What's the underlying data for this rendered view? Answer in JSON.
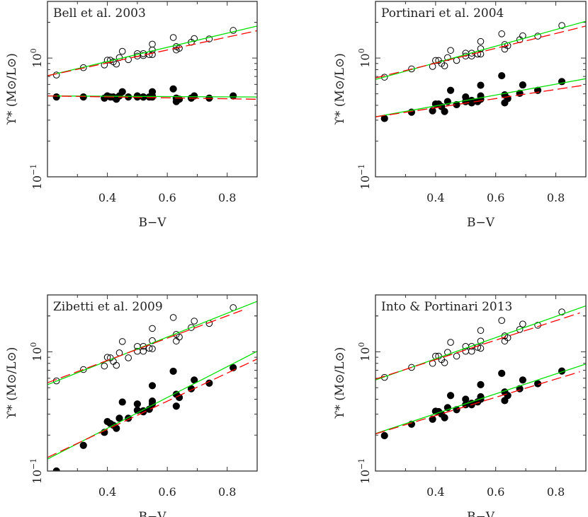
{
  "chart_data": [
    {
      "type": "scatter",
      "title": "Bell et al. 2003",
      "xlabel": "B−V",
      "ylabel": "ϒ* (M⊙/L⊙)",
      "xlim": [
        0.2,
        0.9
      ],
      "ylim": [
        0.1,
        3.0
      ],
      "yscale": "log",
      "xticks": [
        "0.4",
        "0.6",
        "0.8"
      ],
      "yticks": [
        {
          "base": "10",
          "exp": "−1",
          "value": 0.1
        },
        {
          "base": "10",
          "exp": "0",
          "value": 1
        }
      ],
      "x": [
        0.23,
        0.32,
        0.39,
        0.4,
        0.41,
        0.42,
        0.43,
        0.44,
        0.45,
        0.47,
        0.5,
        0.5,
        0.52,
        0.52,
        0.54,
        0.55,
        0.55,
        0.55,
        0.62,
        0.63,
        0.63,
        0.64,
        0.68,
        0.69,
        0.74,
        0.82
      ],
      "series": [
        {
          "marker": "open-circle",
          "y": [
            0.72,
            0.83,
            0.875,
            0.96,
            0.96,
            0.93,
            0.89,
            1.01,
            1.14,
            0.97,
            1.04,
            1.09,
            1.05,
            1.09,
            1.07,
            1.07,
            1.17,
            1.31,
            1.49,
            1.17,
            1.25,
            1.21,
            1.36,
            1.46,
            1.45,
            1.71
          ]
        },
        {
          "marker": "filled-circle",
          "y": [
            0.47,
            0.47,
            0.46,
            0.48,
            0.47,
            0.47,
            0.45,
            0.48,
            0.52,
            0.47,
            0.48,
            0.47,
            0.47,
            0.47,
            0.47,
            0.47,
            0.48,
            0.52,
            0.55,
            0.46,
            0.43,
            0.45,
            0.46,
            0.48,
            0.46,
            0.48
          ]
        }
      ],
      "fits": [
        {
          "style": "solid",
          "color": "#00e000",
          "x": [
            0.2,
            0.9
          ],
          "y": [
            0.71,
            1.86
          ]
        },
        {
          "style": "dashed",
          "color": "#ff0000",
          "x": [
            0.2,
            0.9
          ],
          "y": [
            0.71,
            1.7
          ]
        },
        {
          "style": "solid",
          "color": "#00e000",
          "x": [
            0.2,
            0.9
          ],
          "y": [
            0.48,
            0.47
          ]
        },
        {
          "style": "dashed",
          "color": "#ff0000",
          "x": [
            0.2,
            0.9
          ],
          "y": [
            0.48,
            0.45
          ]
        }
      ]
    },
    {
      "type": "scatter",
      "title": "Portinari et al. 2004",
      "xlabel": "B−V",
      "ylabel": "ϒ* (M⊙/L⊙)",
      "xlim": [
        0.2,
        0.9
      ],
      "ylim": [
        0.1,
        3.0
      ],
      "yscale": "log",
      "xticks": [
        "0.4",
        "0.6",
        "0.8"
      ],
      "yticks": [
        {
          "base": "10",
          "exp": "−1",
          "value": 0.1
        },
        {
          "base": "10",
          "exp": "0",
          "value": 1
        }
      ],
      "x": [
        0.23,
        0.32,
        0.39,
        0.4,
        0.41,
        0.42,
        0.43,
        0.44,
        0.45,
        0.47,
        0.5,
        0.5,
        0.52,
        0.52,
        0.54,
        0.55,
        0.55,
        0.55,
        0.62,
        0.63,
        0.63,
        0.64,
        0.68,
        0.69,
        0.74,
        0.82
      ],
      "series": [
        {
          "marker": "open-circle",
          "y": [
            0.69,
            0.81,
            0.85,
            0.955,
            0.955,
            0.9,
            0.86,
            1.01,
            1.16,
            0.955,
            1.04,
            1.1,
            1.04,
            1.1,
            1.08,
            1.08,
            1.2,
            1.38,
            1.6,
            1.19,
            1.3,
            1.27,
            1.43,
            1.54,
            1.53,
            1.88
          ]
        },
        {
          "marker": "filled-circle",
          "y": [
            0.31,
            0.35,
            0.36,
            0.41,
            0.41,
            0.39,
            0.355,
            0.43,
            0.535,
            0.405,
            0.47,
            0.43,
            0.42,
            0.44,
            0.43,
            0.48,
            0.45,
            0.59,
            0.71,
            0.42,
            0.49,
            0.456,
            0.505,
            0.594,
            0.535,
            0.634
          ]
        }
      ],
      "fits": [
        {
          "style": "solid",
          "color": "#00e000",
          "x": [
            0.2,
            0.9
          ],
          "y": [
            0.66,
            2.04
          ]
        },
        {
          "style": "dashed",
          "color": "#ff0000",
          "x": [
            0.2,
            0.9
          ],
          "y": [
            0.68,
            1.86
          ]
        },
        {
          "style": "solid",
          "color": "#00e000",
          "x": [
            0.2,
            0.9
          ],
          "y": [
            0.32,
            0.67
          ]
        },
        {
          "style": "dashed",
          "color": "#ff0000",
          "x": [
            0.2,
            0.9
          ],
          "y": [
            0.32,
            0.594
          ]
        }
      ]
    },
    {
      "type": "scatter",
      "title": "Zibetti et al. 2009",
      "xlabel": "B−V",
      "ylabel": "ϒ* (M⊙/L⊙)",
      "xlim": [
        0.2,
        0.9
      ],
      "ylim": [
        0.1,
        3.0
      ],
      "yscale": "log",
      "xticks": [
        "0.4",
        "0.6",
        "0.8"
      ],
      "yticks": [
        {
          "base": "10",
          "exp": "−1",
          "value": 0.1
        },
        {
          "base": "10",
          "exp": "0",
          "value": 1
        }
      ],
      "x": [
        0.23,
        0.32,
        0.39,
        0.4,
        0.41,
        0.42,
        0.43,
        0.44,
        0.45,
        0.47,
        0.5,
        0.5,
        0.52,
        0.52,
        0.54,
        0.55,
        0.55,
        0.55,
        0.62,
        0.63,
        0.63,
        0.64,
        0.68,
        0.69,
        0.74,
        0.82
      ],
      "series": [
        {
          "marker": "open-circle",
          "y": [
            0.57,
            0.71,
            0.76,
            0.9,
            0.89,
            0.83,
            0.77,
            0.98,
            1.22,
            0.89,
            1.11,
            1.01,
            1.11,
            1.01,
            1.07,
            1.06,
            1.24,
            1.57,
            1.94,
            1.23,
            1.4,
            1.33,
            1.6,
            1.81,
            1.73,
            2.35
          ]
        },
        {
          "marker": "filled-circle",
          "y": [
            0.1,
            0.164,
            0.211,
            0.26,
            0.25,
            0.242,
            0.228,
            0.277,
            0.379,
            0.277,
            0.365,
            0.323,
            0.314,
            0.32,
            0.33,
            0.365,
            0.386,
            0.52,
            0.687,
            0.35,
            0.44,
            0.414,
            0.49,
            0.58,
            0.546,
            0.736
          ]
        }
      ],
      "fits": [
        {
          "style": "solid",
          "color": "#00e000",
          "x": [
            0.2,
            0.9
          ],
          "y": [
            0.53,
            2.65
          ]
        },
        {
          "style": "dashed",
          "color": "#ff0000",
          "x": [
            0.2,
            0.85
          ],
          "y": [
            0.55,
            2.23
          ]
        },
        {
          "style": "solid",
          "color": "#00e000",
          "x": [
            0.2,
            0.9
          ],
          "y": [
            0.126,
            1.01
          ]
        },
        {
          "style": "dashed",
          "color": "#ff0000",
          "x": [
            0.2,
            0.9
          ],
          "y": [
            0.13,
            0.87
          ]
        }
      ]
    },
    {
      "type": "scatter",
      "title": "Into & Portinari 2013",
      "xlabel": "B−V",
      "ylabel": "ϒ* (M⊙/L⊙)",
      "xlim": [
        0.2,
        0.9
      ],
      "ylim": [
        0.1,
        3.0
      ],
      "yscale": "log",
      "xticks": [
        "0.4",
        "0.6",
        "0.8"
      ],
      "yticks": [
        {
          "base": "10",
          "exp": "−1",
          "value": 0.1
        },
        {
          "base": "10",
          "exp": "0",
          "value": 1
        }
      ],
      "x": [
        0.23,
        0.32,
        0.39,
        0.4,
        0.41,
        0.42,
        0.43,
        0.44,
        0.45,
        0.47,
        0.5,
        0.5,
        0.52,
        0.52,
        0.54,
        0.55,
        0.55,
        0.55,
        0.62,
        0.63,
        0.63,
        0.64,
        0.68,
        0.69,
        0.74,
        0.82
      ],
      "series": [
        {
          "marker": "open-circle",
          "y": [
            0.61,
            0.74,
            0.8,
            0.92,
            0.92,
            0.86,
            0.81,
            0.99,
            1.2,
            0.92,
            1.01,
            1.11,
            1.01,
            1.11,
            1.09,
            1.07,
            1.23,
            1.51,
            1.83,
            1.23,
            1.36,
            1.31,
            1.54,
            1.71,
            1.67,
            2.16
          ]
        },
        {
          "marker": "filled-circle",
          "y": [
            0.198,
            0.247,
            0.272,
            0.317,
            0.315,
            0.3,
            0.28,
            0.34,
            0.43,
            0.327,
            0.36,
            0.4,
            0.36,
            0.37,
            0.38,
            0.42,
            0.4,
            0.53,
            0.66,
            0.39,
            0.46,
            0.43,
            0.49,
            0.58,
            0.54,
            0.69
          ]
        }
      ],
      "fits": [
        {
          "style": "solid",
          "color": "#00e000",
          "x": [
            0.2,
            0.9
          ],
          "y": [
            0.58,
            2.43
          ]
        },
        {
          "style": "dashed",
          "color": "#ff0000",
          "x": [
            0.2,
            0.88
          ],
          "y": [
            0.59,
            2.12
          ]
        },
        {
          "style": "solid",
          "color": "#00e000",
          "x": [
            0.2,
            0.9
          ],
          "y": [
            0.206,
            0.79
          ]
        },
        {
          "style": "dashed",
          "color": "#ff0000",
          "x": [
            0.2,
            0.88
          ],
          "y": [
            0.205,
            0.68
          ]
        }
      ]
    }
  ]
}
